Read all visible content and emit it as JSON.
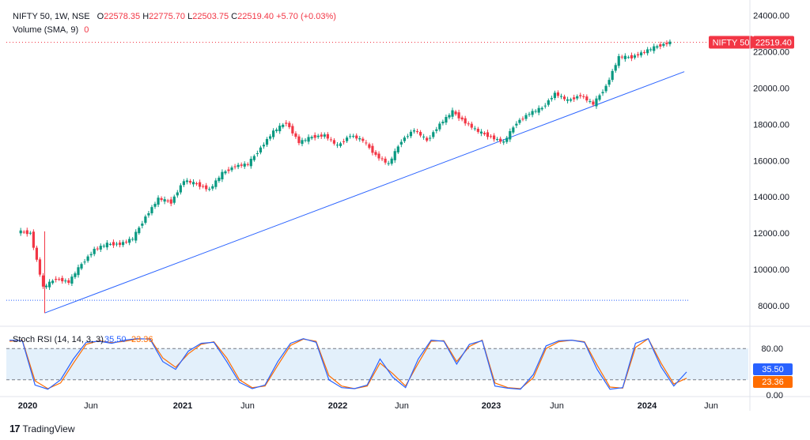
{
  "header": {
    "symbol": "NIFTY 50, 1W, NSE",
    "open_label": "O",
    "open": "22578.35",
    "high_label": "H",
    "high": "22775.70",
    "low_label": "L",
    "low": "22503.75",
    "close_label": "C",
    "close": "22519.40",
    "change": "+5.70 (+0.03%)",
    "volume_label": "Volume (SMA, 9)",
    "volume_value": "0"
  },
  "price_tag": {
    "name": "NIFTY 50",
    "value": "22519.40"
  },
  "stoch": {
    "label": "Stoch RSI (14, 14, 3, 3)",
    "k_value": "35.50",
    "d_value": "23.36",
    "k_tag": "35.50",
    "d_tag": "23.36",
    "y_ticks": [
      "80.00",
      "0.00"
    ]
  },
  "colors": {
    "up": "#089981",
    "down": "#f23645",
    "trend": "#2962ff",
    "k": "#2962ff",
    "d": "#ff6d00",
    "band": "#e3f0fb"
  },
  "x_ticks": [
    "2020",
    "Jun",
    "2021",
    "Jun",
    "2022",
    "Jun",
    "2023",
    "Jun",
    "2024",
    "Jun"
  ],
  "brand": "TradingView",
  "chart_data": {
    "type": "line",
    "title": "NIFTY 50, 1W, NSE",
    "y_ticks": [
      "24000.00",
      "22000.00",
      "20000.00",
      "18000.00",
      "16000.00",
      "14000.00",
      "12000.00",
      "10000.00",
      "8000.00"
    ],
    "ylim": [
      7000,
      24500
    ],
    "x_start": "2019-12",
    "x_end": "2024-04",
    "series": [
      {
        "name": "NIFTY 50",
        "x": [
          "2020-01",
          "2020-02",
          "2020-03",
          "2020-04",
          "2020-05",
          "2020-06",
          "2020-07",
          "2020-08",
          "2020-09",
          "2020-10",
          "2020-11",
          "2020-12",
          "2021-01",
          "2021-02",
          "2021-03",
          "2021-04",
          "2021-05",
          "2021-06",
          "2021-07",
          "2021-08",
          "2021-09",
          "2021-10",
          "2021-11",
          "2021-12",
          "2022-01",
          "2022-02",
          "2022-03",
          "2022-04",
          "2022-05",
          "2022-06",
          "2022-07",
          "2022-08",
          "2022-09",
          "2022-10",
          "2022-11",
          "2022-12",
          "2023-01",
          "2023-02",
          "2023-03",
          "2023-04",
          "2023-05",
          "2023-06",
          "2023-07",
          "2023-08",
          "2023-09",
          "2023-10",
          "2023-11",
          "2023-12",
          "2024-01",
          "2024-02",
          "2024-03",
          "2024-04"
        ],
        "values": [
          12100,
          12000,
          9000,
          9500,
          9300,
          10300,
          11100,
          11400,
          11400,
          11700,
          12900,
          13900,
          13700,
          14900,
          14700,
          14400,
          15300,
          15700,
          15800,
          16700,
          17600,
          18100,
          17000,
          17300,
          17400,
          16800,
          17400,
          17100,
          16300,
          15800,
          17100,
          17700,
          17100,
          18000,
          18700,
          18100,
          17600,
          17300,
          17000,
          18100,
          18600,
          18900,
          19700,
          19300,
          19600,
          19100,
          20100,
          21700,
          21700,
          22000,
          22300,
          22519
        ]
      }
    ],
    "trendline": {
      "from": {
        "x": "2020-03",
        "y": 7600
      },
      "to": {
        "x": "2024-05",
        "y": 20900
      }
    },
    "support_line": 8300,
    "stoch_rsi": {
      "ylim": [
        0,
        100
      ],
      "levels": [
        80,
        20
      ],
      "k": [
        96,
        95,
        10,
        2,
        20,
        60,
        92,
        94,
        90,
        96,
        99,
        98,
        55,
        40,
        75,
        90,
        92,
        55,
        15,
        3,
        10,
        55,
        90,
        99,
        92,
        20,
        5,
        3,
        10,
        60,
        25,
        5,
        60,
        96,
        94,
        50,
        88,
        95,
        8,
        4,
        2,
        30,
        85,
        95,
        96,
        92,
        40,
        2,
        5,
        90,
        99,
        45,
        8,
        35
      ],
      "d": [
        94,
        96,
        18,
        3,
        14,
        52,
        88,
        95,
        91,
        94,
        98,
        99,
        62,
        44,
        70,
        88,
        93,
        62,
        20,
        5,
        8,
        48,
        86,
        98,
        94,
        28,
        8,
        3,
        8,
        52,
        32,
        8,
        52,
        94,
        95,
        55,
        84,
        96,
        14,
        5,
        3,
        24,
        80,
        93,
        96,
        93,
        48,
        6,
        4,
        82,
        99,
        52,
        12,
        23
      ]
    }
  }
}
